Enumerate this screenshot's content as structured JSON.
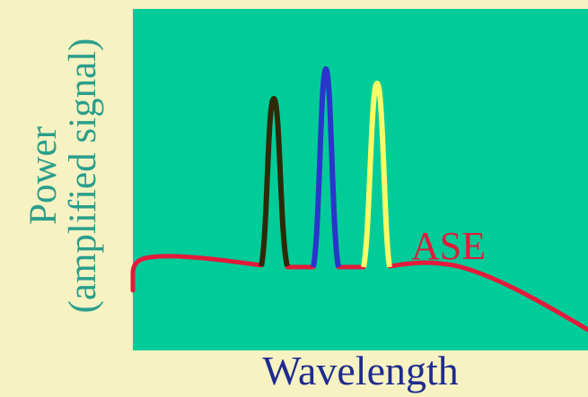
{
  "axes": {
    "ylabel_line1": "Power",
    "ylabel_line2": "(amplified signal)",
    "xlabel": "Wavelength"
  },
  "ase_label": "ASE",
  "colors": {
    "page_background": "#f6f2c2",
    "plot_background": "#00cc99",
    "ase_curve": "#e41a3b",
    "peak_1": "#2e2a08",
    "peak_2": "#2a35cc",
    "peak_3": "#fbfb66",
    "ylabel_text": "#2b9e8c",
    "xlabel_text": "#1f2b8f"
  }
}
